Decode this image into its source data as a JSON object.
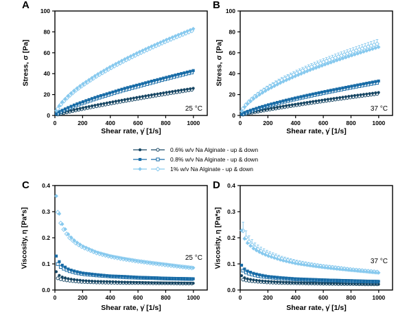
{
  "legend": {
    "items": [
      {
        "label": "0.6% w/v Na Alginate - up & down",
        "shape": "circle",
        "color": "#174663"
      },
      {
        "label": "0.8% w/v Na Alginate - up & down",
        "shape": "square",
        "color": "#176ba6"
      },
      {
        "label": "1% w/v Na Alginate - up & down",
        "shape": "diamond",
        "color": "#87c9ee"
      }
    ]
  },
  "chart_data": [
    {
      "panel": "A",
      "type": "scatter",
      "annotation": "25 °C",
      "xlabel": "Shear rate, γ̇ [1/s]",
      "ylabel": "Stress, σ [Pa]",
      "xlim": [
        0,
        1100
      ],
      "ylim": [
        0,
        100
      ],
      "x_tick_values": [
        0,
        200,
        400,
        600,
        800,
        1000
      ],
      "x_ticks": [
        "0",
        "200",
        "400",
        "600",
        "800",
        "1000"
      ],
      "y_tick_values": [
        0,
        20,
        40,
        60,
        80,
        100
      ],
      "y_ticks": [
        "0",
        "20",
        "40",
        "60",
        "80",
        "100"
      ],
      "x_samples": [
        10,
        25,
        50,
        100,
        150,
        200,
        300,
        400,
        500,
        600,
        700,
        800,
        900,
        1000
      ],
      "series": [
        {
          "name": "0.6% w/v Na Alginate",
          "shape": "circle",
          "color": "#174663",
          "filled": [
            0.8,
            1.5,
            2.5,
            4.2,
            5.7,
            7.2,
            10.0,
            12.6,
            15.0,
            17.4,
            19.7,
            21.9,
            24.0,
            26.0
          ],
          "open": [
            0.5,
            1.0,
            1.9,
            3.4,
            4.8,
            6.2,
            8.8,
            11.3,
            13.7,
            16.0,
            18.3,
            20.5,
            22.7,
            24.8
          ]
        },
        {
          "name": "0.8% w/v Na Alginate",
          "shape": "square",
          "color": "#176ba6",
          "filled": [
            1.5,
            2.9,
            4.7,
            7.8,
            10.6,
            13.0,
            17.7,
            21.7,
            25.8,
            29.3,
            32.9,
            36.3,
            39.7,
            43.0
          ],
          "open": [
            1.1,
            2.3,
            3.9,
            6.8,
            9.4,
            11.7,
            16.2,
            20.2,
            24.2,
            27.7,
            31.3,
            34.8,
            38.2,
            41.5
          ]
        },
        {
          "name": "1% w/v Na Alginate",
          "shape": "diamond",
          "color": "#87c9ee",
          "filled": [
            4.5,
            8.1,
            12.5,
            19.4,
            25.1,
            30.0,
            38.8,
            46.6,
            53.6,
            60.2,
            66.3,
            72.2,
            77.7,
            83.0
          ],
          "open": [
            4.0,
            7.4,
            11.7,
            18.4,
            24.0,
            28.8,
            37.5,
            45.2,
            52.2,
            58.8,
            64.9,
            70.8,
            76.3,
            81.6
          ]
        }
      ]
    },
    {
      "panel": "B",
      "type": "scatter",
      "annotation": "37 °C",
      "xlabel": "Shear rate, γ̇ [1/s]",
      "ylabel": "Stress, σ [Pa]",
      "xlim": [
        0,
        1100
      ],
      "ylim": [
        0,
        100
      ],
      "x_tick_values": [
        0,
        200,
        400,
        600,
        800,
        1000
      ],
      "x_ticks": [
        "0",
        "200",
        "400",
        "600",
        "800",
        "1000"
      ],
      "y_tick_values": [
        0,
        20,
        40,
        60,
        80,
        100
      ],
      "y_ticks": [
        "0",
        "20",
        "40",
        "60",
        "80",
        "100"
      ],
      "x_samples": [
        10,
        25,
        50,
        100,
        150,
        200,
        300,
        400,
        500,
        600,
        700,
        800,
        900,
        1000
      ],
      "series": [
        {
          "name": "0.6% w/v Na Alginate",
          "shape": "circle",
          "color": "#174663",
          "filled": [
            0.7,
            1.3,
            2.2,
            3.6,
            5.0,
            6.2,
            8.6,
            10.7,
            12.8,
            14.8,
            16.7,
            18.6,
            20.3,
            22.0
          ],
          "open": [
            0.4,
            0.9,
            1.7,
            3.0,
            4.2,
            5.4,
            7.6,
            9.7,
            11.7,
            13.6,
            15.5,
            17.3,
            19.1,
            20.8
          ]
        },
        {
          "name": "0.8% w/v Na Alginate",
          "shape": "square",
          "color": "#176ba6",
          "filled": [
            1.2,
            2.2,
            3.7,
            6.1,
            8.2,
            10.1,
            13.6,
            16.8,
            19.8,
            22.6,
            25.3,
            27.9,
            30.5,
            33.0
          ],
          "open": [
            0.9,
            1.8,
            3.1,
            5.3,
            7.3,
            9.1,
            12.5,
            15.6,
            18.5,
            21.3,
            24.0,
            26.6,
            29.1,
            31.5
          ]
        },
        {
          "name": "1% w/v Na Alginate",
          "shape": "diamond",
          "color": "#87c9ee",
          "filled": [
            4.1,
            7.1,
            10.8,
            16.4,
            20.9,
            24.9,
            31.8,
            37.7,
            43.2,
            48.1,
            52.8,
            57.2,
            61.4,
            65.5
          ],
          "open": [
            4.4,
            7.6,
            11.5,
            17.5,
            22.3,
            26.5,
            33.8,
            40.0,
            45.8,
            51.0,
            55.9,
            60.5,
            64.9,
            69.0
          ],
          "error_open": [
            1.0,
            1.2,
            1.5,
            1.8,
            2.0,
            2.2,
            2.6,
            2.9,
            3.1,
            3.3,
            3.5,
            3.7,
            3.9,
            4.2
          ]
        }
      ]
    },
    {
      "panel": "C",
      "type": "scatter",
      "annotation": "25 °C",
      "xlabel": "Shear rate, γ̇ [1/s]",
      "ylabel": "Viscosity, η [Pa*s]",
      "xlim": [
        0,
        1100
      ],
      "ylim": [
        0,
        0.4
      ],
      "x_tick_values": [
        0,
        200,
        400,
        600,
        800,
        1000
      ],
      "x_ticks": [
        "0",
        "200",
        "400",
        "600",
        "800",
        "1000"
      ],
      "y_tick_values": [
        0,
        0.1,
        0.2,
        0.3,
        0.4
      ],
      "y_ticks": [
        "0.0",
        "0.1",
        "0.2",
        "0.3",
        "0.4"
      ],
      "x_samples": [
        10,
        25,
        50,
        100,
        150,
        200,
        300,
        400,
        500,
        600,
        700,
        800,
        900,
        1000
      ],
      "series": [
        {
          "name": "0.6% w/v Na Alginate",
          "shape": "circle",
          "color": "#174663",
          "filled": [
            0.07,
            0.058,
            0.05,
            0.043,
            0.039,
            0.036,
            0.033,
            0.032,
            0.03,
            0.029,
            0.028,
            0.027,
            0.027,
            0.026
          ],
          "open": [
            0.048,
            0.044,
            0.04,
            0.036,
            0.033,
            0.031,
            0.029,
            0.028,
            0.027,
            0.027,
            0.026,
            0.026,
            0.025,
            0.025
          ]
        },
        {
          "name": "0.8% w/v Na Alginate",
          "shape": "square",
          "color": "#176ba6",
          "filled": [
            0.13,
            0.113,
            0.096,
            0.079,
            0.071,
            0.065,
            0.059,
            0.054,
            0.052,
            0.049,
            0.047,
            0.045,
            0.044,
            0.043
          ],
          "open": [
            0.108,
            0.096,
            0.085,
            0.073,
            0.066,
            0.061,
            0.056,
            0.052,
            0.049,
            0.047,
            0.046,
            0.044,
            0.043,
            0.042
          ]
        },
        {
          "name": "1% w/v Na Alginate",
          "shape": "diamond",
          "color": "#87c9ee",
          "filled": [
            0.36,
            0.305,
            0.255,
            0.21,
            0.185,
            0.168,
            0.145,
            0.13,
            0.12,
            0.111,
            0.104,
            0.098,
            0.091,
            0.085
          ],
          "open": [
            0.33,
            0.285,
            0.243,
            0.203,
            0.18,
            0.164,
            0.142,
            0.128,
            0.118,
            0.11,
            0.103,
            0.096,
            0.09,
            0.084
          ]
        }
      ]
    },
    {
      "panel": "D",
      "type": "scatter",
      "annotation": "37 °C",
      "xlabel": "Shear rate, γ̇ [1/s]",
      "ylabel": "Viscosity, η [Pa*s]",
      "xlim": [
        0,
        1100
      ],
      "ylim": [
        0,
        0.4
      ],
      "x_tick_values": [
        0,
        200,
        400,
        600,
        800,
        1000
      ],
      "x_ticks": [
        "0",
        "200",
        "400",
        "600",
        "800",
        "1000"
      ],
      "y_tick_values": [
        0,
        0.1,
        0.2,
        0.3,
        0.4
      ],
      "y_ticks": [
        "0.0",
        "0.1",
        "0.2",
        "0.3",
        "0.4"
      ],
      "x_samples": [
        10,
        25,
        50,
        100,
        150,
        200,
        300,
        400,
        500,
        600,
        700,
        800,
        900,
        1000
      ],
      "series": [
        {
          "name": "0.6% w/v Na Alginate",
          "shape": "circle",
          "color": "#174663",
          "filled": [
            0.055,
            0.048,
            0.043,
            0.038,
            0.035,
            0.033,
            0.03,
            0.028,
            0.027,
            0.026,
            0.025,
            0.024,
            0.023,
            0.022
          ],
          "open": [
            0.042,
            0.039,
            0.036,
            0.033,
            0.031,
            0.029,
            0.027,
            0.026,
            0.025,
            0.024,
            0.023,
            0.023,
            0.022,
            0.022
          ]
        },
        {
          "name": "0.8% w/v Na Alginate",
          "shape": "square",
          "color": "#176ba6",
          "filled": [
            0.095,
            0.083,
            0.073,
            0.063,
            0.057,
            0.052,
            0.047,
            0.043,
            0.041,
            0.039,
            0.037,
            0.036,
            0.034,
            0.033
          ],
          "open": [
            0.08,
            0.072,
            0.065,
            0.057,
            0.052,
            0.049,
            0.044,
            0.041,
            0.039,
            0.037,
            0.036,
            0.034,
            0.033,
            0.032
          ]
        },
        {
          "name": "1% w/v Na Alginate",
          "shape": "diamond",
          "color": "#87c9ee",
          "filled": [
            0.228,
            0.202,
            0.181,
            0.157,
            0.142,
            0.131,
            0.114,
            0.102,
            0.094,
            0.087,
            0.081,
            0.076,
            0.071,
            0.066
          ],
          "open": [
            0.25,
            0.218,
            0.193,
            0.165,
            0.149,
            0.137,
            0.119,
            0.106,
            0.097,
            0.09,
            0.084,
            0.078,
            0.073,
            0.068
          ],
          "error_open": [
            0.04,
            0.03,
            0.024,
            0.018,
            0.015,
            0.013,
            0.01,
            0.009,
            0.008,
            0.007,
            0.007,
            0.006,
            0.006,
            0.006
          ]
        }
      ]
    }
  ]
}
